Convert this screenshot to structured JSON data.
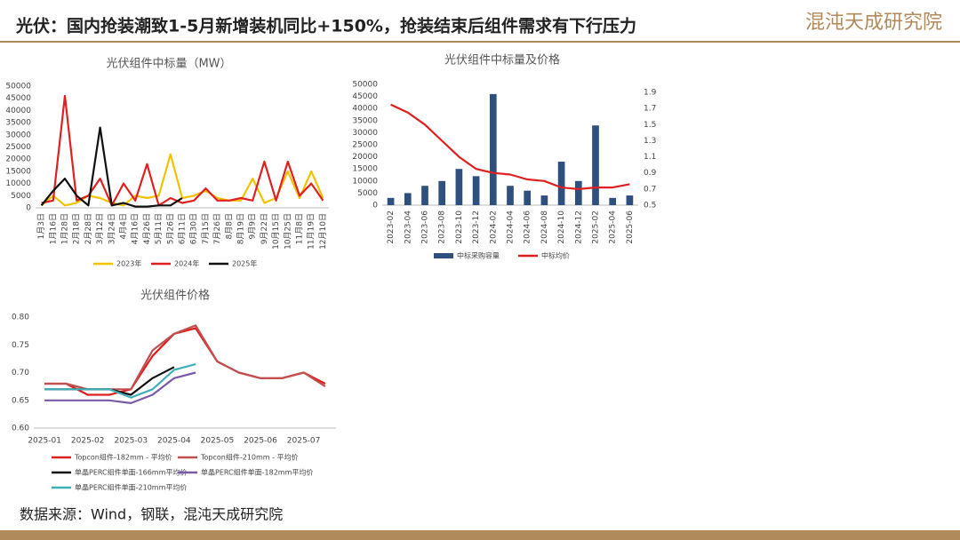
{
  "header": {
    "title": "光伏：国内抢装潮致1-5月新增装机同比+150%，抢装结束后组件需求有下行压力",
    "logo": "混沌天成研究院"
  },
  "footer": {
    "source": "数据来源：Wind，钢联，混沌天成研究院"
  },
  "chart_data": [
    {
      "type": "line",
      "title": "光伏组件中标量（MW）",
      "categories": [
        "1月3日",
        "1月16日",
        "1月28日",
        "2月18日",
        "2月28日",
        "3月12日",
        "3月24日",
        "4月4日",
        "4月16日",
        "4月26日",
        "5月11日",
        "5月26日",
        "6月11日",
        "6月30日",
        "7月15日",
        "7月26日",
        "8月8日",
        "8月19日",
        "9月9日",
        "9月22日",
        "10月15日",
        "10月25日",
        "11月8日",
        "11月19日",
        "12月10日"
      ],
      "ylim": [
        0,
        50000
      ],
      "yticks": [
        0,
        5000,
        10000,
        15000,
        20000,
        25000,
        30000,
        35000,
        40000,
        45000,
        50000
      ],
      "grid": false,
      "series": [
        {
          "name": "2023年",
          "color": "#f2c200",
          "values": [
            1000,
            5000,
            1000,
            2000,
            5000,
            4000,
            2000,
            1000,
            5000,
            4000,
            5000,
            22000,
            4000,
            5000,
            7000,
            4000,
            3000,
            3000,
            12000,
            2000,
            4000,
            15000,
            4000,
            15000,
            4000
          ]
        },
        {
          "name": "2024年",
          "color": "#e02020",
          "values": [
            2000,
            3000,
            46000,
            3000,
            5000,
            12000,
            1000,
            10000,
            3000,
            18000,
            1000,
            4000,
            2000,
            3000,
            8000,
            3000,
            3000,
            4000,
            3000,
            19000,
            3000,
            19000,
            5000,
            10000,
            3000
          ]
        },
        {
          "name": "2025年",
          "color": "#111111",
          "values": [
            1000,
            7000,
            12000,
            5000,
            1000,
            33000,
            1000,
            2000,
            500,
            500,
            1000,
            1000,
            4000,
            null,
            null,
            null,
            null,
            null,
            null,
            null,
            null,
            null,
            null,
            null,
            null
          ]
        }
      ]
    },
    {
      "type": "bar",
      "title": "光伏组件中标量及价格",
      "categories": [
        "2023-02",
        "2023-04",
        "2023-06",
        "2023-08",
        "2023-10",
        "2023-12",
        "2024-02",
        "2024-04",
        "2024-06",
        "2024-08",
        "2024-10",
        "2024-12",
        "2025-02",
        "2025-04",
        "2025-06"
      ],
      "ylim": [
        0,
        50000
      ],
      "yticks": [
        0,
        5000,
        10000,
        15000,
        20000,
        25000,
        30000,
        35000,
        40000,
        45000,
        50000
      ],
      "y2lim": [
        0.5,
        2.0
      ],
      "y2ticks": [
        0.5,
        0.7,
        0.9,
        1.1,
        1.3,
        1.5,
        1.7,
        1.9
      ],
      "grid": false,
      "series": [
        {
          "name": "中标采购容量",
          "color": "#2f4f7f",
          "type": "bar",
          "values": [
            3000,
            5000,
            8000,
            10000,
            15000,
            12000,
            46000,
            8000,
            6000,
            4000,
            18000,
            10000,
            33000,
            3000,
            4000
          ]
        },
        {
          "name": "中标均价",
          "color": "#e02020",
          "type": "line",
          "axis": "y2",
          "values": [
            1.75,
            1.65,
            1.5,
            1.3,
            1.1,
            0.95,
            0.9,
            0.88,
            0.82,
            0.8,
            0.72,
            0.7,
            0.72,
            0.72,
            0.76
          ]
        }
      ]
    },
    {
      "type": "line",
      "title": "光伏组件价格",
      "categories": [
        "2025-01",
        null,
        "2025-02",
        null,
        "2025-03",
        null,
        "2025-04",
        null,
        "2025-05",
        null,
        "2025-06",
        null,
        "2025-07",
        null
      ],
      "ylim": [
        0.6,
        0.8
      ],
      "yticks": [
        {
          "value": 0.6,
          "label": "0.60"
        },
        0.65,
        {
          "value": 0.7,
          "label": "0.70"
        },
        0.75,
        {
          "value": 0.8,
          "label": "0.80"
        }
      ],
      "grid": false,
      "series": [
        {
          "name": "Topcon组件-182mm - 平均价",
          "color": "#e02020",
          "values": [
            0.68,
            0.68,
            0.66,
            0.66,
            0.67,
            0.73,
            0.77,
            0.78,
            0.72,
            0.7,
            0.69,
            0.69,
            0.7,
            0.68
          ]
        },
        {
          "name": "Topcon组件-210mm - 平均价",
          "color": "#c05050",
          "values": [
            0.68,
            0.68,
            0.67,
            0.67,
            0.67,
            0.74,
            0.77,
            0.785,
            0.72,
            0.7,
            0.69,
            0.69,
            0.7,
            0.675
          ]
        },
        {
          "name": "单晶PERC组件单面-166mm平均价",
          "color": "#111111",
          "values": [
            0.67,
            0.67,
            0.67,
            0.67,
            0.66,
            0.69,
            0.71,
            null,
            null,
            null,
            null,
            null,
            null,
            null
          ]
        },
        {
          "name": "单晶PERC组件单面-182mm平均价",
          "color": "#7a5aa8",
          "values": [
            0.65,
            0.65,
            0.65,
            0.65,
            0.645,
            0.66,
            0.69,
            0.7,
            null,
            null,
            null,
            null,
            null,
            null
          ]
        },
        {
          "name": "单晶PERC组件单面-210mm平均价",
          "color": "#3fb0b8",
          "values": [
            0.67,
            0.67,
            0.67,
            0.67,
            0.655,
            0.67,
            0.705,
            0.715,
            null,
            null,
            null,
            null,
            null,
            null
          ]
        }
      ]
    }
  ]
}
